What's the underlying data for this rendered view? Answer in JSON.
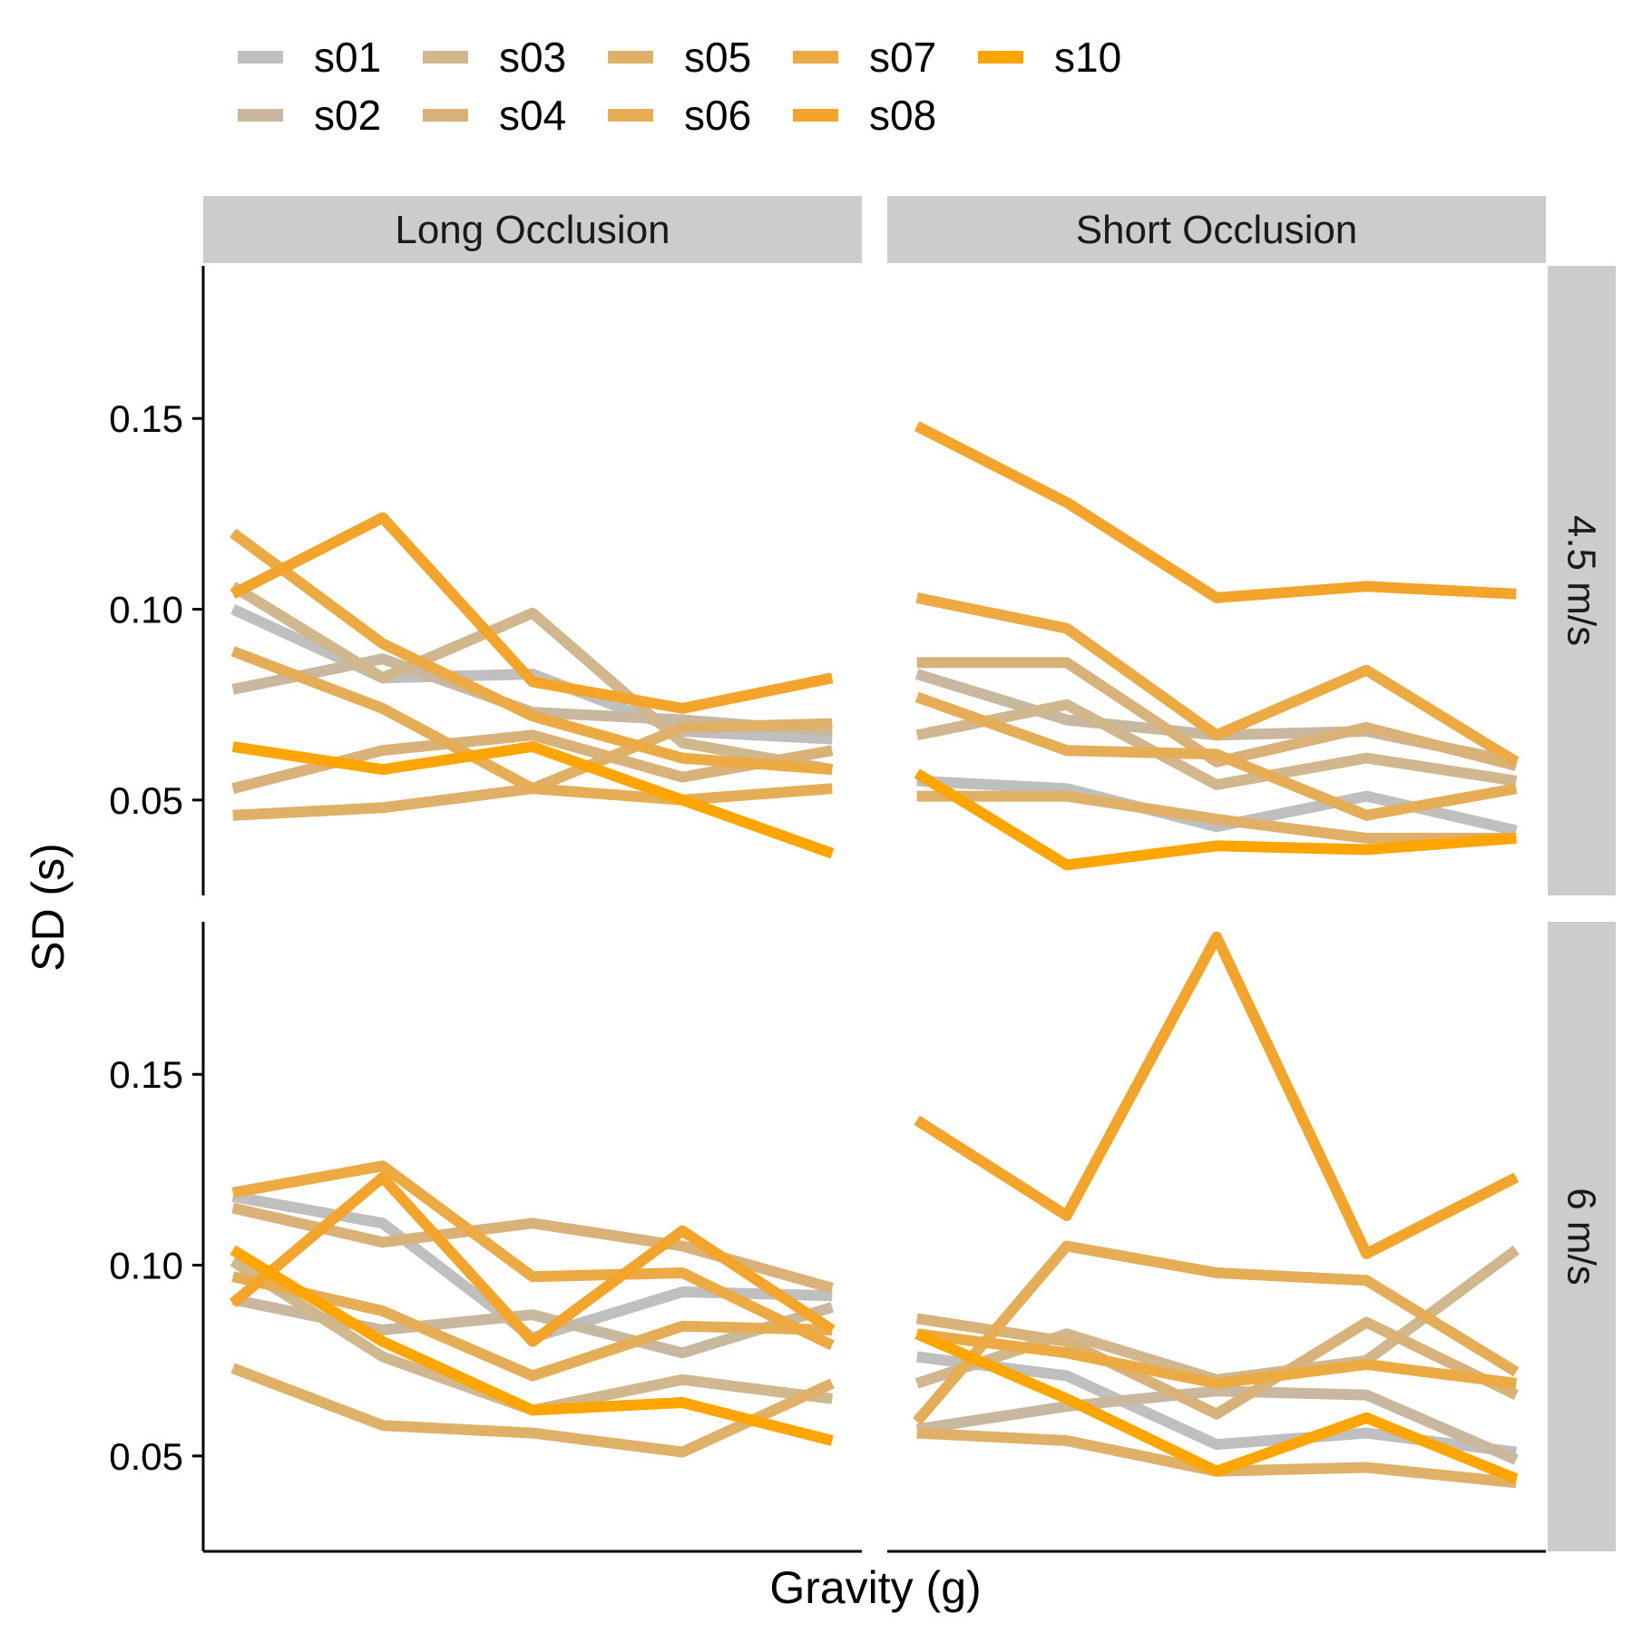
{
  "chart_data": {
    "type": "line",
    "xlabel": "Gravity (g)",
    "ylabel": "SD (s)",
    "ylim": [
      0.025,
      0.19
    ],
    "yticks": [
      0.05,
      0.1,
      0.15
    ],
    "ytick_labels": [
      "0.05",
      "0.10",
      "0.15"
    ],
    "x": [
      1,
      2,
      3,
      4,
      5
    ],
    "legend_position": "top",
    "grid": false,
    "columns": [
      {
        "key": "long",
        "label": "Long Occlusion"
      },
      {
        "key": "short",
        "label": "Short Occlusion"
      }
    ],
    "rows": [
      {
        "key": "v45",
        "label": "4.5 m/s"
      },
      {
        "key": "v6",
        "label": "6 m/s"
      }
    ],
    "series": [
      {
        "name": "s01",
        "color": "#bfbfbf"
      },
      {
        "name": "s02",
        "color": "#c9b8a0"
      },
      {
        "name": "s03",
        "color": "#d1b78e"
      },
      {
        "name": "s04",
        "color": "#d9b27a"
      },
      {
        "name": "s05",
        "color": "#dfb068"
      },
      {
        "name": "s06",
        "color": "#e5ad56"
      },
      {
        "name": "s07",
        "color": "#ebaa42"
      },
      {
        "name": "s08",
        "color": "#f2a52a"
      },
      {
        "name": "s10",
        "color": "#ffa500"
      }
    ],
    "panels": [
      {
        "column": "long",
        "row": "v45",
        "values": {
          "s01": [
            0.1,
            0.082,
            0.083,
            0.068,
            0.066
          ],
          "s02": [
            0.079,
            0.087,
            0.073,
            0.071,
            0.068
          ],
          "s03": [
            0.106,
            0.082,
            0.099,
            0.065,
            0.058
          ],
          "s04": [
            0.053,
            0.063,
            0.067,
            0.056,
            0.063
          ],
          "s05": [
            0.046,
            0.048,
            0.053,
            0.069,
            0.07
          ],
          "s06": [
            0.089,
            0.074,
            0.053,
            0.05,
            0.053
          ],
          "s07": [
            0.12,
            0.091,
            0.072,
            0.061,
            0.058
          ],
          "s08": [
            0.104,
            0.124,
            0.081,
            0.074,
            0.082
          ],
          "s10": [
            0.064,
            0.058,
            0.064,
            0.05,
            0.036
          ]
        }
      },
      {
        "column": "short",
        "row": "v45",
        "values": {
          "s01": [
            0.055,
            0.053,
            0.043,
            0.051,
            0.042
          ],
          "s02": [
            0.083,
            0.071,
            0.067,
            0.068,
            0.06
          ],
          "s03": [
            0.067,
            0.075,
            0.054,
            0.061,
            0.055
          ],
          "s04": [
            0.086,
            0.086,
            0.06,
            0.069,
            0.059
          ],
          "s05": [
            0.051,
            0.051,
            0.045,
            0.04,
            0.04
          ],
          "s06": [
            0.077,
            0.063,
            0.062,
            0.046,
            0.053
          ],
          "s07": [
            0.103,
            0.095,
            0.067,
            0.084,
            0.06
          ],
          "s08": [
            0.148,
            0.128,
            0.103,
            0.106,
            0.104
          ],
          "s10": [
            0.057,
            0.033,
            0.038,
            0.037,
            0.04
          ]
        }
      },
      {
        "column": "long",
        "row": "v6",
        "values": {
          "s01": [
            0.118,
            0.111,
            0.081,
            0.093,
            0.092
          ],
          "s02": [
            0.091,
            0.083,
            0.087,
            0.077,
            0.089
          ],
          "s03": [
            0.101,
            0.076,
            0.062,
            0.07,
            0.065
          ],
          "s04": [
            0.115,
            0.106,
            0.111,
            0.105,
            0.094
          ],
          "s05": [
            0.073,
            0.058,
            0.056,
            0.051,
            0.069
          ],
          "s06": [
            0.097,
            0.088,
            0.071,
            0.084,
            0.083
          ],
          "s07": [
            0.119,
            0.126,
            0.097,
            0.098,
            0.079
          ],
          "s08": [
            0.09,
            0.123,
            0.08,
            0.109,
            0.083
          ],
          "s10": [
            0.104,
            0.08,
            0.062,
            0.064,
            0.054
          ]
        }
      },
      {
        "column": "short",
        "row": "v6",
        "values": {
          "s01": [
            0.076,
            0.071,
            0.053,
            0.056,
            0.051
          ],
          "s02": [
            0.057,
            0.063,
            0.067,
            0.066,
            0.049
          ],
          "s03": [
            0.069,
            0.082,
            0.07,
            0.075,
            0.104
          ],
          "s04": [
            0.086,
            0.08,
            0.061,
            0.085,
            0.066
          ],
          "s05": [
            0.056,
            0.054,
            0.046,
            0.047,
            0.043
          ],
          "s06": [
            0.059,
            0.105,
            0.098,
            0.096,
            0.072
          ],
          "s07": [
            0.082,
            0.077,
            0.069,
            0.074,
            0.069
          ],
          "s08": [
            0.138,
            0.113,
            0.186,
            0.103,
            0.123
          ],
          "s10": [
            0.082,
            0.065,
            0.046,
            0.06,
            0.044
          ]
        }
      }
    ]
  }
}
